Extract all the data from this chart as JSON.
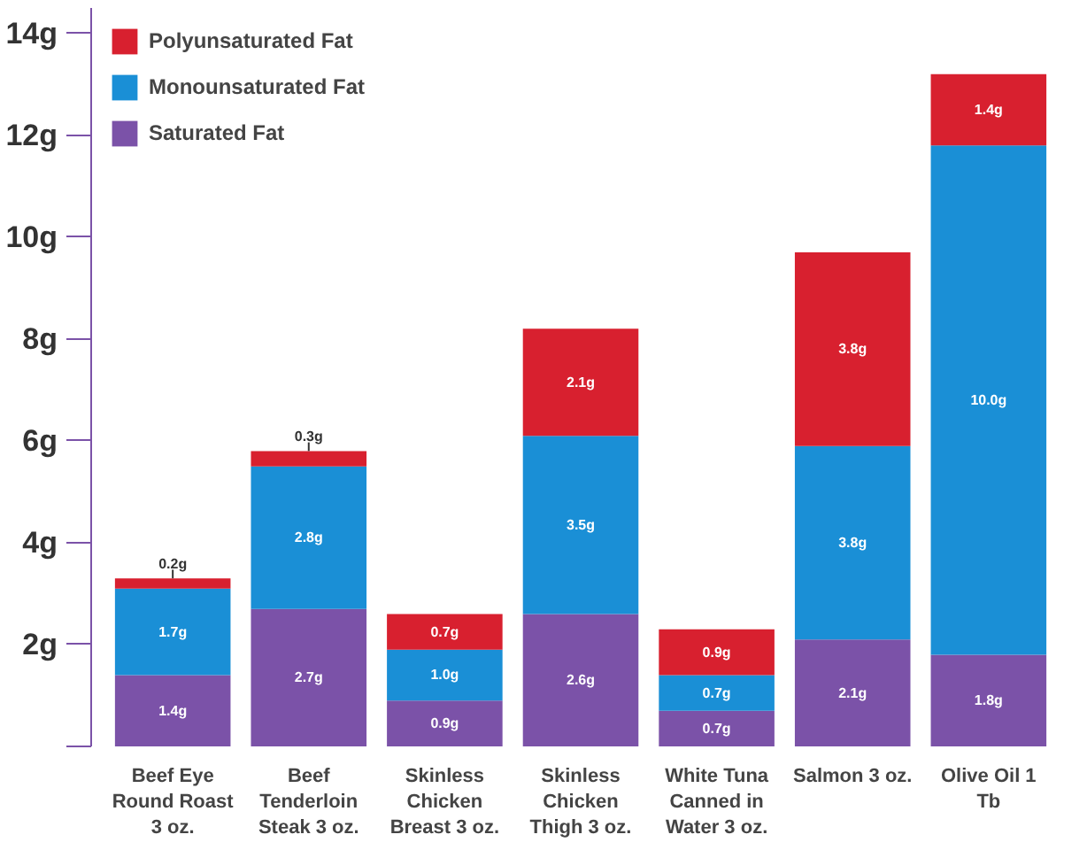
{
  "chart_data": {
    "type": "bar",
    "stacked": true,
    "categories": [
      "Beef Eye Round Roast 3 oz.",
      "Beef Tenderloin Steak 3 oz.",
      "Skinless Chicken Breast 3 oz.",
      "Skinless Chicken Thigh 3 oz.",
      "White Tuna Canned in Water 3 oz.",
      "Salmon 3 oz.",
      "Olive Oil 1 Tb"
    ],
    "series": [
      {
        "name": "Saturated Fat",
        "color": "#7b52a8",
        "values": [
          1.4,
          2.7,
          0.9,
          2.6,
          0.7,
          2.1,
          1.8
        ],
        "value_labels": [
          "1.4g",
          "2.7g",
          "0.9g",
          "2.6g",
          "0.7g",
          "2.1g",
          "1.8g"
        ]
      },
      {
        "name": "Monounsaturated Fat",
        "color": "#1a8fd6",
        "values": [
          1.7,
          2.8,
          1.0,
          3.5,
          0.7,
          3.8,
          10.0
        ],
        "value_labels": [
          "1.7g",
          "2.8g",
          "1.0g",
          "3.5g",
          "0.7g",
          "3.8g",
          "10.0g"
        ]
      },
      {
        "name": "Polyunsaturated Fat",
        "color": "#d8202f",
        "values": [
          0.2,
          0.3,
          0.7,
          2.1,
          0.9,
          3.8,
          1.4
        ],
        "value_labels": [
          "0.2g",
          "0.3g",
          "0.7g",
          "2.1g",
          "0.9g",
          "3.8g",
          "1.4g"
        ]
      }
    ],
    "ylim": [
      0,
      14.5
    ],
    "yticks": [
      {
        "value": 0,
        "label": null
      },
      {
        "value": 2,
        "label": "2g"
      },
      {
        "value": 4,
        "label": "4g"
      },
      {
        "value": 6,
        "label": "6g"
      },
      {
        "value": 8,
        "label": "8g"
      },
      {
        "value": 10,
        "label": "10g"
      },
      {
        "value": 12,
        "label": "12g"
      },
      {
        "value": 14,
        "label": "14g"
      }
    ],
    "grid": false,
    "legend": "top left"
  }
}
